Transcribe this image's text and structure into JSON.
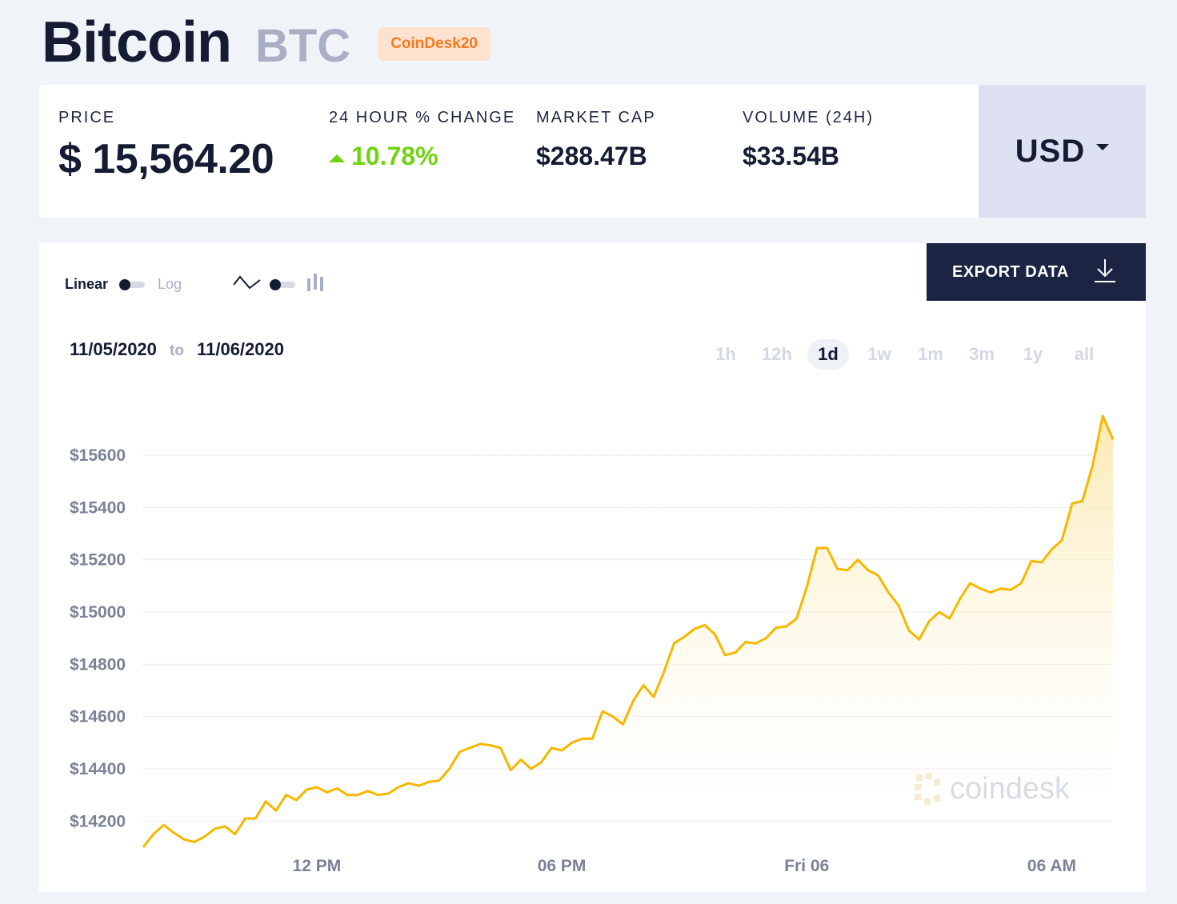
{
  "header": {
    "coin_name": "Bitcoin",
    "coin_symbol": "BTC",
    "badge": "CoinDesk20"
  },
  "stats": {
    "price_label": "PRICE",
    "price_value": "$ 15,564.20",
    "change_label": "24 HOUR % CHANGE",
    "change_value": "10.78%",
    "market_cap_label": "MARKET CAP",
    "market_cap_value": "$288.47B",
    "volume_label": "VOLUME (24H)",
    "volume_value": "$33.54B",
    "currency": "USD"
  },
  "controls": {
    "linear_label": "Linear",
    "log_label": "Log",
    "export_label": "EXPORT DATA",
    "date_from": "11/05/2020",
    "date_to_word": "to",
    "date_to": "11/06/2020",
    "ranges": [
      "1h",
      "12h",
      "1d",
      "1w",
      "1m",
      "3m",
      "1y",
      "all"
    ],
    "active_range": "1d",
    "watermark": "coindesk"
  },
  "colors": {
    "line": "#f5b800",
    "positive": "#6fd40f",
    "badge_text": "#f47b20",
    "export_bg": "#1b2543"
  },
  "chart_data": {
    "type": "area",
    "ylim": [
      14100,
      15750
    ],
    "y_ticks": [
      14200,
      14400,
      14600,
      14800,
      15000,
      15200,
      15400,
      15600
    ],
    "y_tick_labels": [
      "$14200",
      "$14400",
      "$14600",
      "$14800",
      "$15000",
      "$15200",
      "$15400",
      "$15600"
    ],
    "x_ticks": [
      {
        "label": "12 PM",
        "index": 17
      },
      {
        "label": "06 PM",
        "index": 41
      },
      {
        "label": "Fri 06",
        "index": 65
      },
      {
        "label": "06 AM",
        "index": 89
      }
    ],
    "series": [
      {
        "values": [
          14100,
          14150,
          14185,
          14155,
          14130,
          14120,
          14140,
          14170,
          14180,
          14150,
          14210,
          14210,
          14275,
          14240,
          14300,
          14280,
          14320,
          14330,
          14310,
          14325,
          14300,
          14300,
          14315,
          14300,
          14305,
          14330,
          14345,
          14335,
          14350,
          14355,
          14400,
          14465,
          14480,
          14495,
          14490,
          14480,
          14395,
          14435,
          14400,
          14425,
          14480,
          14470,
          14500,
          14515,
          14515,
          14620,
          14600,
          14570,
          14660,
          14720,
          14675,
          14770,
          14880,
          14905,
          14935,
          14950,
          14915,
          14835,
          14845,
          14885,
          14880,
          14900,
          14940,
          14945,
          14975,
          15095,
          15245,
          15245,
          15165,
          15160,
          15200,
          15160,
          15140,
          15075,
          15025,
          14930,
          14895,
          14965,
          15000,
          14975,
          15050,
          15110,
          15090,
          15075,
          15090,
          15085,
          15110,
          15195,
          15190,
          15240,
          15275,
          15415,
          15425,
          15560,
          15750,
          15660
        ]
      }
    ]
  }
}
